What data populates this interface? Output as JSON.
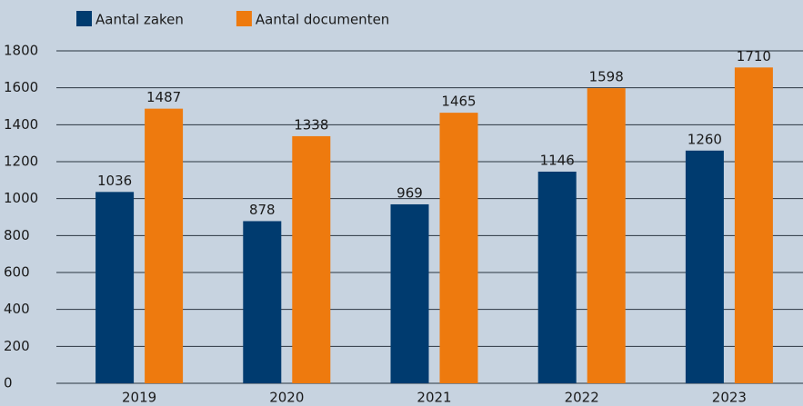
{
  "chart_data": {
    "type": "bar",
    "categories": [
      "2019",
      "2020",
      "2021",
      "2022",
      "2023"
    ],
    "series": [
      {
        "name": "Aantal zaken",
        "color": "#003b6f",
        "values": [
          1036,
          878,
          969,
          1146,
          1260
        ]
      },
      {
        "name": "Aantal documenten",
        "color": "#ee7a0e",
        "values": [
          1487,
          1338,
          1465,
          1598,
          1710
        ]
      }
    ],
    "ylim": [
      0,
      1800
    ],
    "yticks": [
      0,
      200,
      400,
      600,
      800,
      1000,
      1200,
      1400,
      1600,
      1800
    ],
    "grid": true,
    "legend": "top"
  }
}
